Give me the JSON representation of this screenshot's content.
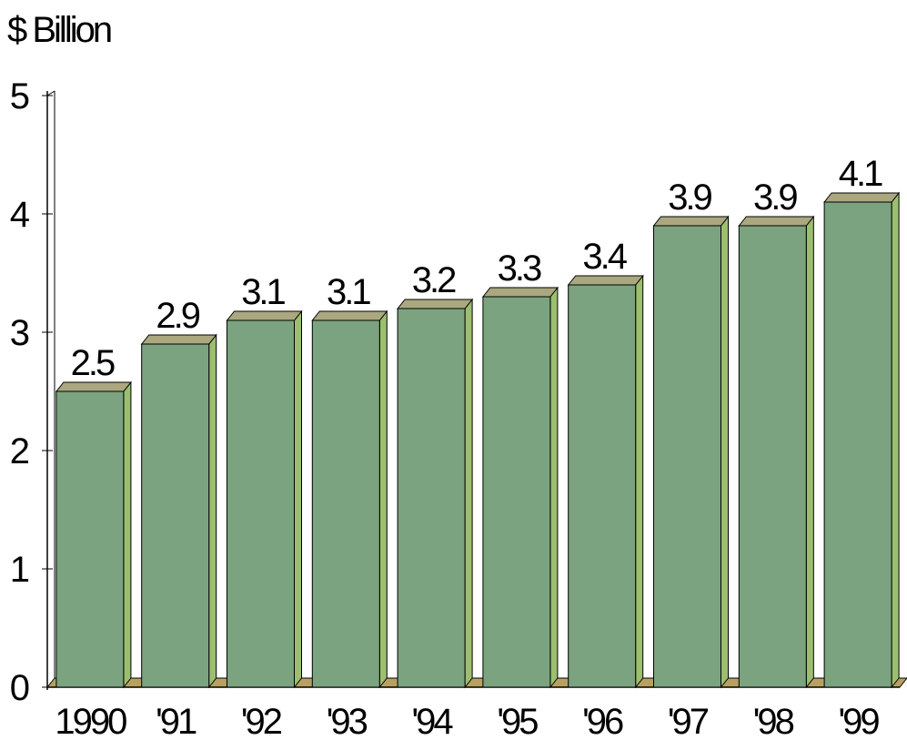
{
  "chart_data": {
    "type": "bar3d",
    "y_axis_label": "$ Billion",
    "categories": [
      "1990",
      "'91",
      "'92",
      "'93",
      "'94",
      "'95",
      "'96",
      "'97",
      "'98",
      "'99"
    ],
    "values": [
      2.5,
      2.9,
      3.1,
      3.1,
      3.2,
      3.3,
      3.4,
      3.9,
      3.9,
      4.1
    ],
    "color": "#7ba37f",
    "ylim": [
      0,
      5
    ],
    "yticks": [
      0,
      1,
      2,
      3,
      4,
      5
    ]
  }
}
